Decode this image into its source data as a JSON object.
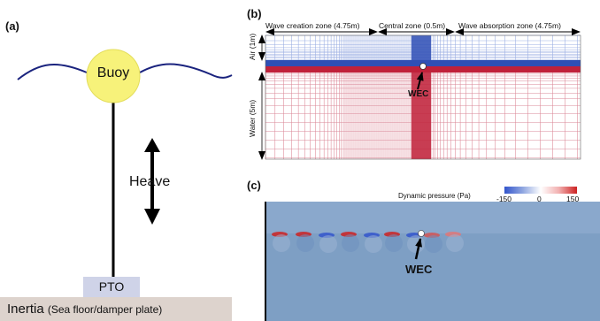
{
  "panel_labels": {
    "a": "(a)",
    "b": "(b)",
    "c": "(c)"
  },
  "panel_a": {
    "buoy": "Buoy",
    "heave": "Heave",
    "pto": "PTO",
    "inertia": "Inertia",
    "inertia_note": "(Sea floor/damper plate)",
    "colors": {
      "buoy": "#f7f27a",
      "wave": "#1a237e",
      "pto": "#cfd3e8",
      "base": "#ddd3cd"
    }
  },
  "panel_b": {
    "zone_left": "Wave creation zone (4.75m)",
    "zone_center": "Central zone (0.5m)",
    "zone_right": "Wave absorption zone (4.75m)",
    "air_label": "Air (1m)",
    "water_label": "Water (5m)",
    "wec_label": "WEC",
    "colors": {
      "air_mesh": "#2f4fb5",
      "water_mesh": "#c0213a"
    }
  },
  "panel_c": {
    "title": "Dynamic pressure (Pa)",
    "colorbar_ticks": [
      "-150",
      "0",
      "150"
    ],
    "wec_label": "WEC",
    "colors": {
      "field": "#7e9fc4",
      "negative": "#3355cc",
      "positive": "#cc2222"
    }
  }
}
